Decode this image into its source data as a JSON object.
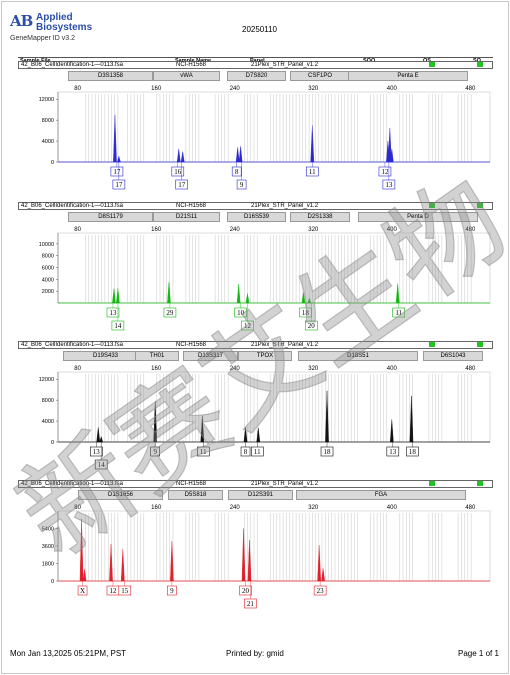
{
  "header": {
    "logo_mark": "AB",
    "brand_line1": "Applied",
    "brand_line2": "Biosystems",
    "software": "GeneMapper ID v3.2",
    "run_date": "20250110"
  },
  "columns": {
    "sample_file": "Sample File",
    "sample_name": "Sample Name",
    "panel": "Panel",
    "sqo": "SQO",
    "os": "OS",
    "sq": "SQ"
  },
  "colors": {
    "blue": "#2a2ad0",
    "green": "#12b812",
    "black": "#111111",
    "red": "#e0202a",
    "qc_green": "#22c322",
    "watermark": "#8a8a8a"
  },
  "panels": [
    {
      "sample_file": "42_B06_CellIdentification-1—0113.fsa",
      "sample_name": "NCI-H1568",
      "panel": "21Plex_STR_Panel_v1.2",
      "color_key": "blue",
      "markers": [
        "D3S1358",
        "vWA",
        "D7S820",
        "CSF1PO",
        "Penta E"
      ],
      "x_ticks": [
        "80",
        "160",
        "240",
        "320",
        "400",
        "480"
      ],
      "y_ticks": [
        "12000",
        "8000",
        "4000",
        "0"
      ],
      "y_max": 13000,
      "peaks": [
        {
          "x": 118,
          "h": 9000
        },
        {
          "x": 122,
          "h": 1100
        },
        {
          "x": 183,
          "h": 2500
        },
        {
          "x": 187,
          "h": 2000
        },
        {
          "x": 243,
          "h": 2800
        },
        {
          "x": 246,
          "h": 3000
        },
        {
          "x": 319,
          "h": 7000
        },
        {
          "x": 396,
          "h": 4000
        },
        {
          "x": 398,
          "h": 6500
        },
        {
          "x": 400,
          "h": 2500
        }
      ],
      "alleles": [
        {
          "label": "17",
          "x": 120,
          "row": 1
        },
        {
          "label": "17",
          "x": 122,
          "row": 2
        },
        {
          "label": "16",
          "x": 182,
          "row": 1
        },
        {
          "label": "17",
          "x": 186,
          "row": 2
        },
        {
          "label": "8",
          "x": 242,
          "row": 1
        },
        {
          "label": "9",
          "x": 247,
          "row": 2
        },
        {
          "label": "11",
          "x": 319,
          "row": 1
        },
        {
          "label": "12",
          "x": 393,
          "row": 1
        },
        {
          "label": "13",
          "x": 397,
          "row": 2
        }
      ]
    },
    {
      "sample_file": "42_B06_CellIdentification-1—0113.fsa",
      "sample_name": "NCI-H1568",
      "panel": "21Plex_STR_Panel_v1.2",
      "color_key": "green",
      "markers": [
        "D8S1179",
        "D21S11",
        "D16S539",
        "D2S1338",
        "Penta D"
      ],
      "x_ticks": [
        "80",
        "160",
        "240",
        "320",
        "400",
        "480"
      ],
      "y_ticks": [
        "10000",
        "8000",
        "6000",
        "4000",
        "2000"
      ],
      "y_max": 11500,
      "peaks": [
        {
          "x": 117,
          "h": 2400
        },
        {
          "x": 121,
          "h": 2500
        },
        {
          "x": 173,
          "h": 3500
        },
        {
          "x": 244,
          "h": 3200
        },
        {
          "x": 253,
          "h": 1600
        },
        {
          "x": 310,
          "h": 1800
        },
        {
          "x": 316,
          "h": 800
        },
        {
          "x": 406,
          "h": 3300
        }
      ],
      "alleles": [
        {
          "label": "13",
          "x": 116,
          "row": 1
        },
        {
          "label": "14",
          "x": 121,
          "row": 2
        },
        {
          "label": "29",
          "x": 174,
          "row": 1
        },
        {
          "label": "10",
          "x": 246,
          "row": 1
        },
        {
          "label": "12",
          "x": 253,
          "row": 2
        },
        {
          "label": "18",
          "x": 312,
          "row": 1
        },
        {
          "label": "20",
          "x": 318,
          "row": 2
        },
        {
          "label": "11",
          "x": 407,
          "row": 1
        }
      ]
    },
    {
      "sample_file": "42_B06_CellIdentification-1—0113.fsa",
      "sample_name": "NCI-H1568",
      "panel": "21Plex_STR_Panel_v1.2",
      "color_key": "black",
      "markers": [
        "D19S433",
        "TH01",
        "D13S317",
        "TPOX",
        "D18S51",
        "D6S1043"
      ],
      "x_ticks": [
        "80",
        "160",
        "240",
        "320",
        "400",
        "480"
      ],
      "y_ticks": [
        "12000",
        "8000",
        "4000",
        "0"
      ],
      "y_max": 13000,
      "peaks": [
        {
          "x": 101,
          "h": 2800
        },
        {
          "x": 104,
          "h": 1000
        },
        {
          "x": 159,
          "h": 7800
        },
        {
          "x": 207,
          "h": 5000
        },
        {
          "x": 251,
          "h": 2800
        },
        {
          "x": 264,
          "h": 2700
        },
        {
          "x": 334,
          "h": 9800
        },
        {
          "x": 400,
          "h": 4300
        },
        {
          "x": 420,
          "h": 8800
        }
      ],
      "alleles": [
        {
          "label": "13",
          "x": 99,
          "row": 1
        },
        {
          "label": "14",
          "x": 104,
          "row": 2
        },
        {
          "label": "9",
          "x": 159,
          "row": 1
        },
        {
          "label": "11",
          "x": 208,
          "row": 1
        },
        {
          "label": "8",
          "x": 251,
          "row": 1
        },
        {
          "label": "11",
          "x": 263,
          "row": 1
        },
        {
          "label": "18",
          "x": 334,
          "row": 1
        },
        {
          "label": "13",
          "x": 401,
          "row": 1
        },
        {
          "label": "18",
          "x": 421,
          "row": 1
        }
      ]
    },
    {
      "sample_file": "42_B06_CellIdentification-1—0113.fsa",
      "sample_name": "NCI-H1568",
      "panel": "21Plex_STR_Panel_v1.2",
      "color_key": "red",
      "markers": [
        "D1S1656",
        "D5S818",
        "D12S391",
        "FGA"
      ],
      "x_ticks": [
        "80",
        "160",
        "240",
        "320",
        "400",
        "480"
      ],
      "y_ticks": [
        "5400",
        "3600",
        "1800",
        "0"
      ],
      "y_max": 7000,
      "peaks": [
        {
          "x": 84,
          "h": 6400
        },
        {
          "x": 87,
          "h": 1200
        },
        {
          "x": 114,
          "h": 3800
        },
        {
          "x": 126,
          "h": 3300
        },
        {
          "x": 176,
          "h": 4100
        },
        {
          "x": 249,
          "h": 5400
        },
        {
          "x": 255,
          "h": 4200
        },
        {
          "x": 326,
          "h": 3700
        },
        {
          "x": 330,
          "h": 1300
        }
      ],
      "alleles": [
        {
          "label": "X",
          "x": 85,
          "row": 1
        },
        {
          "label": "12",
          "x": 116,
          "row": 1
        },
        {
          "label": "15",
          "x": 128,
          "row": 1
        },
        {
          "label": "9",
          "x": 176,
          "row": 1
        },
        {
          "label": "20",
          "x": 251,
          "row": 1
        },
        {
          "label": "21",
          "x": 256,
          "row": 2
        },
        {
          "label": "23",
          "x": 327,
          "row": 1
        }
      ]
    }
  ],
  "footer": {
    "date": "Mon Jan 13,2025 05:21PM, PST",
    "printed_by": "Printed by: gmid",
    "page": "Page 1 of 1"
  },
  "watermark": {
    "text": "新赛艾生物"
  }
}
